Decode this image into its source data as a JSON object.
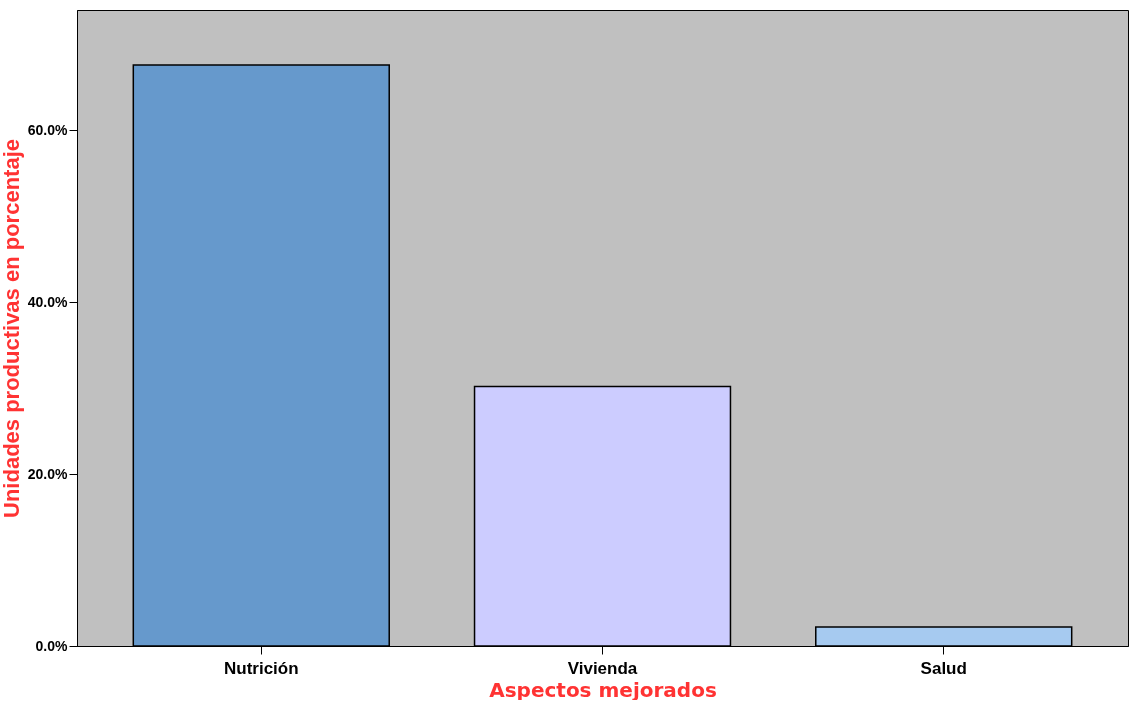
{
  "chart_data": {
    "type": "bar",
    "xlabel": "Aspectos mejorados",
    "ylabel": "Unidades productivas en porcentaje",
    "categories": [
      "Nutrición",
      "Vivienda",
      "Salud"
    ],
    "values": [
      67.6,
      30.2,
      2.2
    ],
    "colors": [
      "#6699cc",
      "#ccccff",
      "#a6caf0"
    ],
    "ylim": [
      0,
      74
    ],
    "yticks": [
      {
        "value": 0,
        "label": "0.0%"
      },
      {
        "value": 20,
        "label": "20.0%"
      },
      {
        "value": 40,
        "label": "40.0%"
      },
      {
        "value": 60,
        "label": "60.0%"
      }
    ],
    "grid": false
  }
}
